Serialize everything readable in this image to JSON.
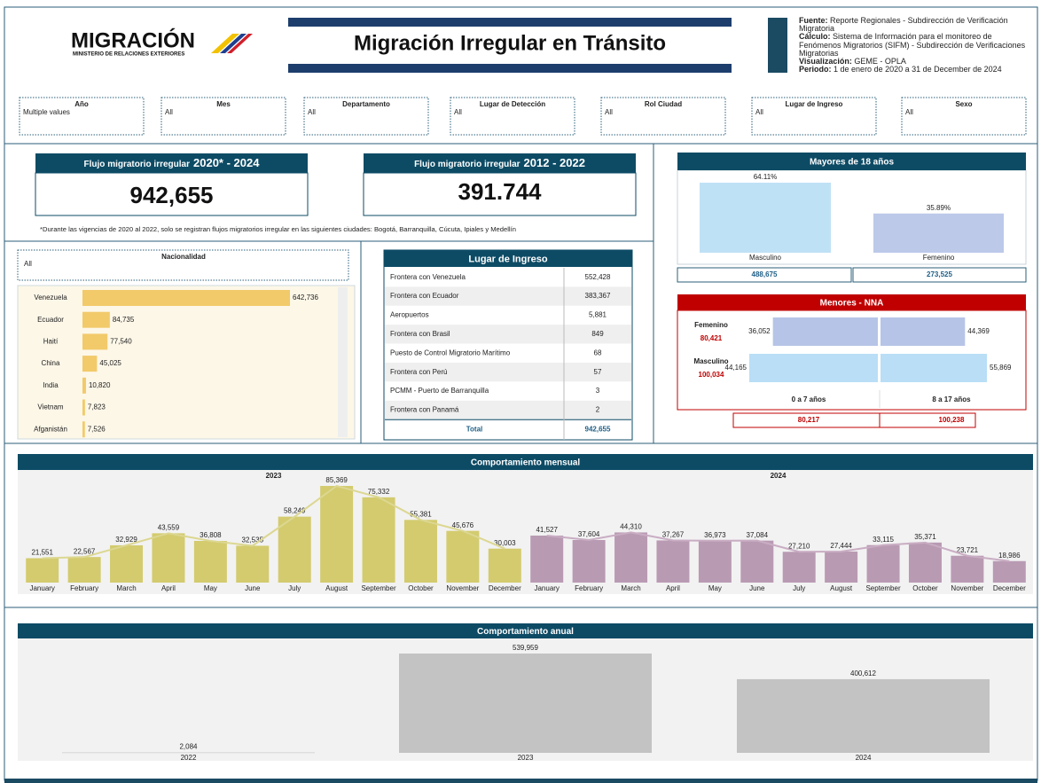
{
  "header": {
    "logo": "MIGRACIÓN",
    "logo_subtitle": "MINISTERIO DE RELACIONES EXTERIORES",
    "title": "Migración Irregular en Tránsito",
    "source": [
      {
        "label": "Fuente:",
        "text": "Reporte Regionales - Subdirección de Verificación Migratoria"
      },
      {
        "label": "Cálculo:",
        "text": "Sistema de Información para el monitoreo de Fenómenos Migratorios (SIFM) - Subdirección de Verificaciones Migratorias"
      },
      {
        "label": "Visualización:",
        "text": "GEME - OPLA"
      },
      {
        "label": "Periodo:",
        "text": "1 de enero de 2020 a 31 de December de 2024"
      }
    ]
  },
  "filters": [
    {
      "label": "Año",
      "value": "Multiple values"
    },
    {
      "label": "Mes",
      "value": "All"
    },
    {
      "label": "Departamento",
      "value": "All"
    },
    {
      "label": "Lugar de Detección",
      "value": "All"
    },
    {
      "label": "Rol Ciudad",
      "value": "All"
    },
    {
      "label": "Lugar de Ingreso",
      "value": "All"
    },
    {
      "label": "Sexo",
      "value": "All"
    }
  ],
  "kpis": [
    {
      "label": "Flujo migratorio irregular",
      "period": "2020* - 2024",
      "value": "942,655"
    },
    {
      "label": "Flujo migratorio irregular",
      "period": "2012 - 2022",
      "value": "391.744"
    }
  ],
  "note": "*Durante las vigencias de 2020 al 2022, solo se registran flujos migratorios irregular en las siguientes ciudades: Bogotá, Barranquilla, Cúcuta, Ipiales y Medellín",
  "nationality_filter": {
    "label": "Nacionalidad",
    "value": "All"
  },
  "table": {
    "title": "Lugar de Ingreso",
    "rows": [
      [
        "Frontera con Venezuela",
        "552,428"
      ],
      [
        "Frontera con Ecuador",
        "383,367"
      ],
      [
        "Aeropuertos",
        "5,881"
      ],
      [
        "Frontera con Brasil",
        "849"
      ],
      [
        "Puesto de Control Migratorio Marítimo",
        "68"
      ],
      [
        "Frontera con Perú",
        "57"
      ],
      [
        "PCMM - Puerto de Barranquilla",
        "3"
      ],
      [
        "Frontera con Panamá",
        "2"
      ]
    ],
    "total": [
      "Total",
      "942,655"
    ]
  },
  "chart_data": [
    {
      "type": "hbar",
      "categories": [
        "Venezuela",
        "Ecuador",
        "Haití",
        "China",
        "India",
        "Vietnam",
        "Afganistán"
      ],
      "values": [
        642736,
        84735,
        77540,
        45025,
        10820,
        7823,
        7526
      ],
      "value_labels": [
        "642,736",
        "84,735",
        "77,540",
        "45,025",
        "10,820",
        "7,823",
        "7,526"
      ],
      "color": "#f2ca6a"
    },
    {
      "type": "bar",
      "title": "Mayores de 18 años",
      "categories": [
        "Masculino",
        "Femenino"
      ],
      "values": [
        64.11,
        35.89
      ],
      "value_labels": [
        "64.11%",
        "35.89%"
      ],
      "colors": [
        "#bfe1f6",
        "#bcc9e9"
      ],
      "counts": [
        "488,675",
        "273,525"
      ]
    },
    {
      "type": "hbar",
      "title": "Menores - NNA",
      "categories": [
        "Femenino",
        "Masculino"
      ],
      "category_totals": [
        "80,421",
        "100,034"
      ],
      "colors": [
        "#b6c4e7",
        "#b9def6"
      ],
      "series": [
        {
          "name": "0 a 7 años",
          "values": [
            36052,
            44165
          ],
          "value_labels": [
            "36,052",
            "44,165"
          ],
          "total": "80,217"
        },
        {
          "name": "8 a 17 años",
          "values": [
            44369,
            55869
          ],
          "value_labels": [
            "44,369",
            "55,869"
          ],
          "total": "100,238"
        }
      ]
    },
    {
      "type": "bar-line",
      "title": "Comportamiento mensual",
      "categories": [
        "January",
        "February",
        "March",
        "April",
        "May",
        "June",
        "July",
        "August",
        "September",
        "October",
        "November",
        "December"
      ],
      "series": [
        {
          "name": "2023",
          "color": "#d3cb6e",
          "line_color": "#dcd791",
          "values": [
            21551,
            22567,
            32929,
            43559,
            36808,
            32535,
            58249,
            85369,
            75332,
            55381,
            45676,
            30003
          ],
          "value_labels": [
            "21,551",
            "22,567",
            "32,929",
            "43,559",
            "36,808",
            "32,535",
            "58,249",
            "85,369",
            "75,332",
            "55,381",
            "45,676",
            "30,003"
          ]
        },
        {
          "name": "2024",
          "color": "#b99ab3",
          "line_color": "#c9adc3",
          "values": [
            41527,
            37604,
            44310,
            37267,
            36973,
            37084,
            27210,
            27444,
            33115,
            35371,
            23721,
            18986
          ],
          "value_labels": [
            "41,527",
            "37,604",
            "44,310",
            "37,267",
            "36,973",
            "37,084",
            "27,210",
            "27,444",
            "33,115",
            "35,371",
            "23,721",
            "18,986"
          ]
        }
      ]
    },
    {
      "type": "bar",
      "title": "Comportamiento anual",
      "categories": [
        "2022",
        "2023",
        "2024"
      ],
      "values": [
        2084,
        539959,
        400612
      ],
      "value_labels": [
        "2,084",
        "539,959",
        "400,612"
      ],
      "color": "#c3c3c3"
    }
  ]
}
